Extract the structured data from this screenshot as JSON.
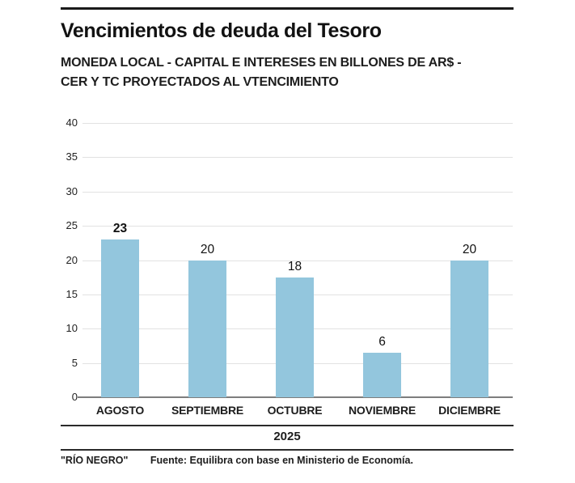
{
  "header": {
    "title": "Vencimientos de deuda del Tesoro",
    "subtitle_line1": "MONEDA LOCAL - CAPITAL E INTERESES EN BILLONES DE AR$ -",
    "subtitle_line2": "CER Y TC PROYECTADOS AL VTENCIMIENTO"
  },
  "chart_data": {
    "type": "bar",
    "title": "Vencimientos de deuda del Tesoro",
    "subtitle": "MONEDA LOCAL - CAPITAL E INTERESES EN BILLONES DE AR$ - CER Y TC PROYECTADOS AL VTENCIMIENTO",
    "categories": [
      "AGOSTO",
      "SEPTIEMBRE",
      "OCTUBRE",
      "NOVIEMBRE",
      "DICIEMBRE"
    ],
    "values": [
      23,
      20,
      17.5,
      6.5,
      20
    ],
    "value_labels": [
      "23",
      "20",
      "18",
      "6",
      "20"
    ],
    "bold_label_index": 0,
    "xlabel": "2025",
    "ylabel": "",
    "ylim": [
      0,
      40
    ],
    "ytick_step": 5,
    "yticks": [
      "0",
      "5",
      "10",
      "15",
      "20",
      "25",
      "30",
      "35",
      "40"
    ],
    "grid": true,
    "legend": false,
    "bar_color": "#93c6dd",
    "gridline_color": "#e2e2e2",
    "baseline_color": "#7d7d7d"
  },
  "footer": {
    "credit": "\"RÍO NEGRO\"",
    "source": "Fuente: Equilibra con base en Ministerio de Economía."
  }
}
